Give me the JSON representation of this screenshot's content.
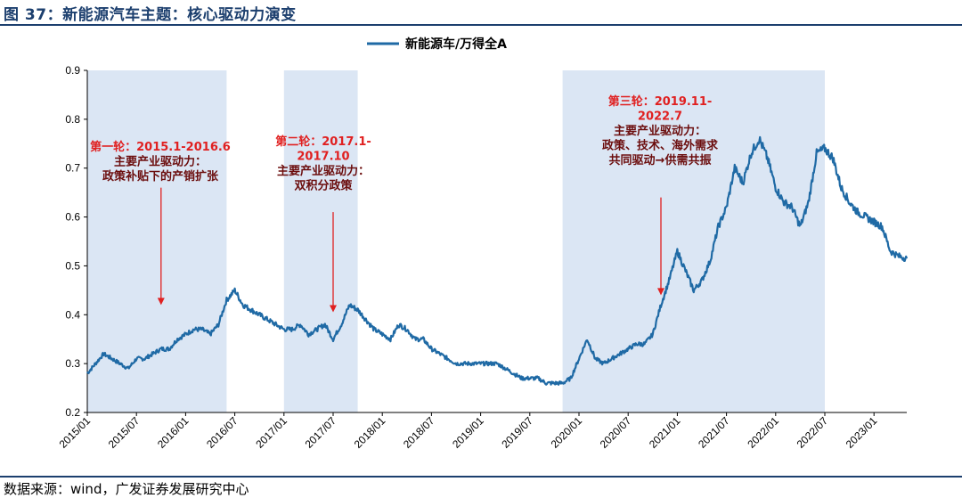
{
  "figure": {
    "title": "图 37：新能源汽车主题：核心驱动力演变",
    "source": "数据来源：wind，广发证券发展研究中心"
  },
  "colors": {
    "line": "#1f6aa5",
    "shade": "#dbe6f4",
    "accent_dark_blue": "#1c3f6e",
    "annotation_red": "#e02020",
    "annotation_dark": "#6b0d0d"
  },
  "chart_data": {
    "type": "line",
    "title": "",
    "xlabel": "",
    "ylabel": "",
    "ylim": [
      0.2,
      0.9
    ],
    "y_ticks": [
      "0.2",
      "0.3",
      "0.4",
      "0.5",
      "0.6",
      "0.7",
      "0.8",
      "0.9"
    ],
    "x_ticks": [
      "2015/01",
      "2015/07",
      "2016/01",
      "2016/07",
      "2017/01",
      "2017/07",
      "2018/01",
      "2018/07",
      "2019/01",
      "2019/07",
      "2020/01",
      "2020/07",
      "2021/01",
      "2021/07",
      "2022/01",
      "2022/07",
      "2023/01"
    ],
    "x_range": [
      "2015/01",
      "2023/05"
    ],
    "legend": {
      "position": "top-center"
    },
    "grid": false,
    "series": [
      {
        "name": "新能源车/万得全A",
        "points": [
          [
            "2015/01",
            0.28
          ],
          [
            "2015/02",
            0.3
          ],
          [
            "2015/03",
            0.32
          ],
          [
            "2015/04",
            0.31
          ],
          [
            "2015/05",
            0.3
          ],
          [
            "2015/06",
            0.29
          ],
          [
            "2015/07",
            0.31
          ],
          [
            "2015/08",
            0.31
          ],
          [
            "2015/09",
            0.32
          ],
          [
            "2015/10",
            0.33
          ],
          [
            "2015/11",
            0.33
          ],
          [
            "2015/12",
            0.35
          ],
          [
            "2016/01",
            0.36
          ],
          [
            "2016/02",
            0.37
          ],
          [
            "2016/03",
            0.37
          ],
          [
            "2016/04",
            0.36
          ],
          [
            "2016/05",
            0.38
          ],
          [
            "2016/06",
            0.43
          ],
          [
            "2016/07",
            0.45
          ],
          [
            "2016/08",
            0.42
          ],
          [
            "2016/09",
            0.41
          ],
          [
            "2016/10",
            0.4
          ],
          [
            "2016/11",
            0.39
          ],
          [
            "2016/12",
            0.38
          ],
          [
            "2017/01",
            0.37
          ],
          [
            "2017/02",
            0.37
          ],
          [
            "2017/03",
            0.38
          ],
          [
            "2017/04",
            0.36
          ],
          [
            "2017/05",
            0.37
          ],
          [
            "2017/06",
            0.38
          ],
          [
            "2017/07",
            0.35
          ],
          [
            "2017/08",
            0.38
          ],
          [
            "2017/09",
            0.42
          ],
          [
            "2017/10",
            0.41
          ],
          [
            "2017/11",
            0.39
          ],
          [
            "2017/12",
            0.37
          ],
          [
            "2018/01",
            0.36
          ],
          [
            "2018/02",
            0.35
          ],
          [
            "2018/03",
            0.38
          ],
          [
            "2018/04",
            0.37
          ],
          [
            "2018/05",
            0.35
          ],
          [
            "2018/06",
            0.35
          ],
          [
            "2018/07",
            0.33
          ],
          [
            "2018/08",
            0.32
          ],
          [
            "2018/09",
            0.31
          ],
          [
            "2018/10",
            0.3
          ],
          [
            "2018/11",
            0.3
          ],
          [
            "2018/12",
            0.3
          ],
          [
            "2019/01",
            0.3
          ],
          [
            "2019/02",
            0.3
          ],
          [
            "2019/03",
            0.3
          ],
          [
            "2019/04",
            0.29
          ],
          [
            "2019/05",
            0.28
          ],
          [
            "2019/06",
            0.27
          ],
          [
            "2019/07",
            0.27
          ],
          [
            "2019/08",
            0.27
          ],
          [
            "2019/09",
            0.26
          ],
          [
            "2019/10",
            0.26
          ],
          [
            "2019/11",
            0.26
          ],
          [
            "2019/12",
            0.27
          ],
          [
            "2020/01",
            0.31
          ],
          [
            "2020/02",
            0.35
          ],
          [
            "2020/03",
            0.31
          ],
          [
            "2020/04",
            0.3
          ],
          [
            "2020/05",
            0.31
          ],
          [
            "2020/06",
            0.32
          ],
          [
            "2020/07",
            0.33
          ],
          [
            "2020/08",
            0.34
          ],
          [
            "2020/09",
            0.34
          ],
          [
            "2020/10",
            0.36
          ],
          [
            "2020/11",
            0.42
          ],
          [
            "2020/12",
            0.47
          ],
          [
            "2021/01",
            0.53
          ],
          [
            "2021/02",
            0.49
          ],
          [
            "2021/03",
            0.45
          ],
          [
            "2021/04",
            0.47
          ],
          [
            "2021/05",
            0.51
          ],
          [
            "2021/06",
            0.58
          ],
          [
            "2021/07",
            0.62
          ],
          [
            "2021/08",
            0.7
          ],
          [
            "2021/09",
            0.67
          ],
          [
            "2021/10",
            0.73
          ],
          [
            "2021/11",
            0.76
          ],
          [
            "2021/12",
            0.72
          ],
          [
            "2022/01",
            0.66
          ],
          [
            "2022/02",
            0.63
          ],
          [
            "2022/03",
            0.62
          ],
          [
            "2022/04",
            0.58
          ],
          [
            "2022/05",
            0.63
          ],
          [
            "2022/06",
            0.73
          ],
          [
            "2022/07",
            0.74
          ],
          [
            "2022/08",
            0.72
          ],
          [
            "2022/09",
            0.66
          ],
          [
            "2022/10",
            0.63
          ],
          [
            "2022/11",
            0.61
          ],
          [
            "2022/12",
            0.6
          ],
          [
            "2023/01",
            0.59
          ],
          [
            "2023/02",
            0.58
          ],
          [
            "2023/03",
            0.53
          ],
          [
            "2023/04",
            0.52
          ],
          [
            "2023/05",
            0.515
          ]
        ]
      }
    ],
    "shaded_periods": [
      {
        "start": "2015/01",
        "end": "2016/06"
      },
      {
        "start": "2017/01",
        "end": "2017/10"
      },
      {
        "start": "2019/11",
        "end": "2022/07"
      }
    ],
    "annotations": [
      {
        "lines": [
          "第一轮：2015.1-2016.6",
          "主要产业驱动力：",
          "政策补贴下的产销扩张"
        ],
        "arrow_x": "2015/10",
        "arrow_y_from": 0.66,
        "arrow_y_to": 0.42
      },
      {
        "lines": [
          "第二轮：2017.1-",
          "2017.10",
          "主要产业驱动力：",
          "双积分政策"
        ],
        "arrow_x": "2017/07",
        "arrow_y_from": 0.61,
        "arrow_y_to": 0.405
      },
      {
        "lines": [
          "第三轮：2019.11-",
          "2022.7",
          "主要产业驱动力：",
          "政策、技术、海外需求",
          "共同驱动→供需共振"
        ],
        "arrow_x": "2020/11",
        "arrow_y_from": 0.64,
        "arrow_y_to": 0.44
      }
    ]
  }
}
